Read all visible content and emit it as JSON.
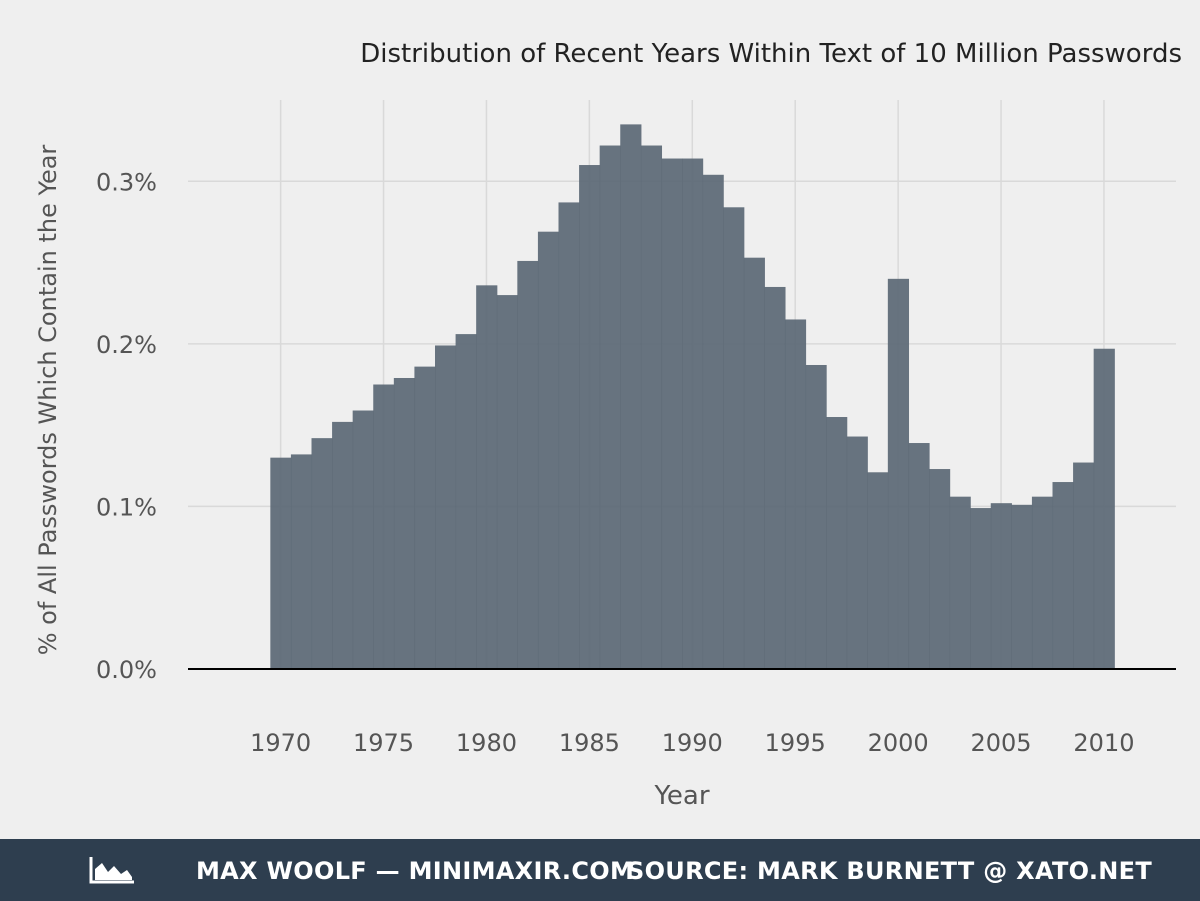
{
  "chart_data": {
    "type": "bar",
    "title": "Distribution of Recent Years Within Text of 10 Million Passwords",
    "xlabel": "Year",
    "ylabel": "% of All Passwords Which Contain the Year",
    "categories": [
      1970,
      1971,
      1972,
      1973,
      1974,
      1975,
      1976,
      1977,
      1978,
      1979,
      1980,
      1981,
      1982,
      1983,
      1984,
      1985,
      1986,
      1987,
      1988,
      1989,
      1990,
      1991,
      1992,
      1993,
      1994,
      1995,
      1996,
      1997,
      1998,
      1999,
      2000,
      2001,
      2002,
      2003,
      2004,
      2005,
      2006,
      2007,
      2008,
      2009,
      2010
    ],
    "values": [
      0.13,
      0.132,
      0.142,
      0.152,
      0.159,
      0.175,
      0.179,
      0.186,
      0.199,
      0.206,
      0.236,
      0.23,
      0.251,
      0.269,
      0.287,
      0.31,
      0.322,
      0.335,
      0.322,
      0.314,
      0.314,
      0.304,
      0.284,
      0.253,
      0.235,
      0.215,
      0.187,
      0.155,
      0.143,
      0.121,
      0.24,
      0.139,
      0.123,
      0.106,
      0.099,
      0.102,
      0.101,
      0.106,
      0.115,
      0.127,
      0.197
    ],
    "xlim": [
      1965.5,
      2013.5
    ],
    "ylim": [
      0,
      0.35
    ],
    "x_ticks": [
      1970,
      1975,
      1980,
      1985,
      1990,
      1995,
      2000,
      2005,
      2010
    ],
    "y_ticks": [
      0.0,
      0.1,
      0.2,
      0.3
    ],
    "y_tick_labels": [
      "0.0%",
      "0.1%",
      "0.2%",
      "0.3%"
    ],
    "grid": true,
    "bar_color": "#5f6b78"
  },
  "footer": {
    "author": "MAX WOOLF — MINIMAXIR.COM",
    "source": "SOURCE: MARK BURNETT @ XATO.NET",
    "logo_icon": "area-chart-icon"
  },
  "colors": {
    "background": "#efefef",
    "footer_bg": "#2e3e4f",
    "footer_text": "#ffffff",
    "text_dark": "#222222",
    "text_axis": "#555555",
    "grid": "#d9d9d9"
  }
}
